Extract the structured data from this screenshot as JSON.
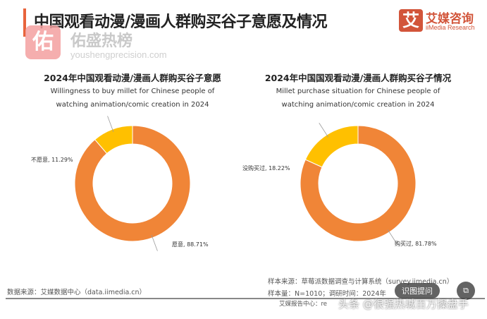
{
  "header": {
    "title": "中国观看动漫/漫画人群购买谷子意愿及情况",
    "brand_cn": "艾媒咨询",
    "brand_en": "iiMedia Research",
    "brand_logo_char": "艾"
  },
  "watermark": {
    "logo_char": "佑",
    "name": "佑盛热榜",
    "url": "youshengprecision.com"
  },
  "chart_data": [
    {
      "type": "pie",
      "donut": true,
      "title": "2024年中国观看动漫/漫画人群购买谷子意愿",
      "subtitle": [
        "Willingness to buy millet for Chinese people of",
        "watching animation/comic creation in 2024"
      ],
      "slices": [
        {
          "label": "不愿意",
          "value": 11.29,
          "display": "不愿意, 11.29%",
          "color": "#FFC000"
        },
        {
          "label": "愿意",
          "value": 88.71,
          "display": "愿意, 88.71%",
          "color": "#F08537"
        }
      ]
    },
    {
      "type": "pie",
      "donut": true,
      "title": "2024年中国国观看动漫/漫画人群购买谷子情况",
      "subtitle": [
        "Millet purchase situation for Chinese people of",
        "watching animation/comic creation in 2024"
      ],
      "slices": [
        {
          "label": "没购买过",
          "value": 18.22,
          "display": "没购买过, 18.22%",
          "color": "#FFC000"
        },
        {
          "label": "购买过",
          "value": 81.78,
          "display": "购买过, 81.78%",
          "color": "#F08537"
        }
      ]
    }
  ],
  "footer": {
    "source": "数据来源：艾媒数据中心（data.iimedia.cn）",
    "sample_source": "样本来源：草莓派数据调查与计算系统（survey.iimedia.cn）",
    "sample_size": "样本量：N=1010；调研时间：2024年",
    "report_center": "艾媒报告中心：re",
    "overlay_ask": "识图提问",
    "overlay_watermark": "头条 @很强热城百万操盘手"
  }
}
